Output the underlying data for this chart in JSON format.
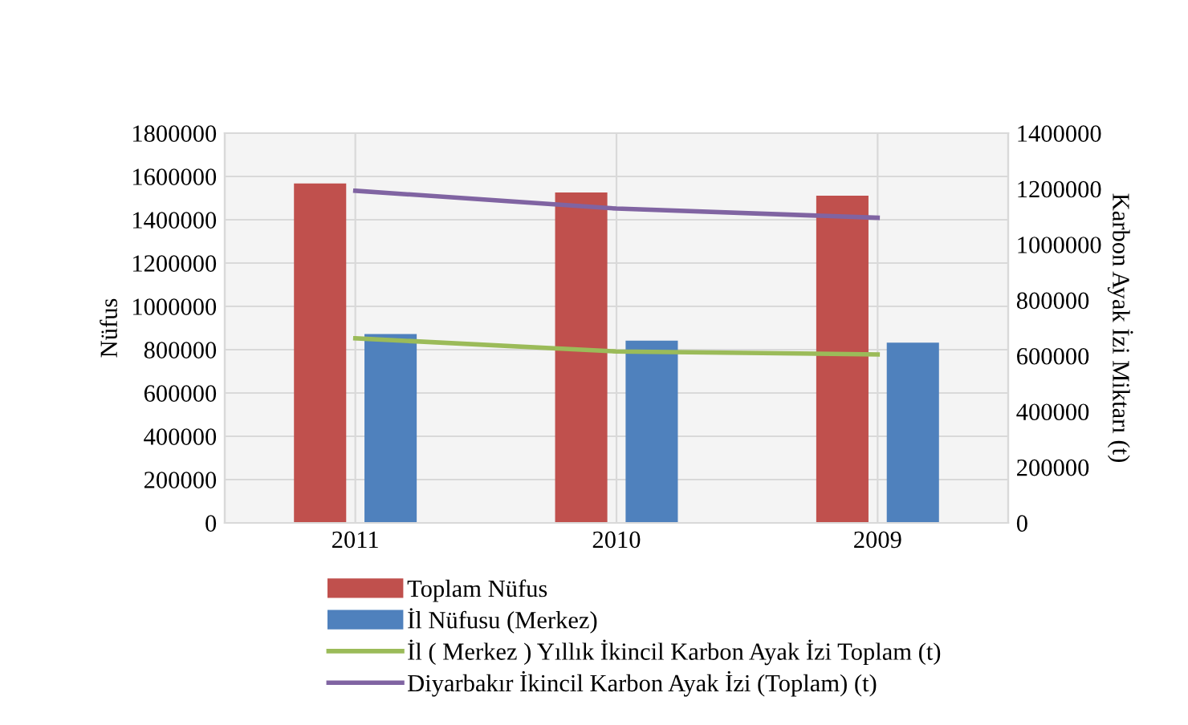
{
  "chart_data": {
    "type": "bar",
    "categories": [
      "2011",
      "2010",
      "2009"
    ],
    "ylabel": "Nüfus",
    "y2label": "Karbon Ayak İzi Miktarı (t)",
    "ylim": [
      0,
      1800000
    ],
    "yticks": [
      0,
      200000,
      400000,
      600000,
      800000,
      1000000,
      1200000,
      1400000,
      1600000,
      1800000
    ],
    "y2lim": [
      0,
      1400000
    ],
    "y2ticks": [
      0,
      200000,
      400000,
      600000,
      800000,
      1000000,
      1200000,
      1400000
    ],
    "grid": true,
    "legend": "bottom",
    "series": [
      {
        "name": "Toplam Nüfus",
        "color": "#c0504d",
        "values": [
          1568000,
          1526000,
          1511000
        ]
      },
      {
        "name": "İl Nüfusu (Merkez)",
        "color": "#4f81bd",
        "values": [
          872000,
          842000,
          832000
        ]
      },
      {
        "name": "İl ( Merkez ) Yıllık İkincil Karbon Ayak İzi Toplam (t)",
        "type": "line",
        "axis": "y2",
        "color": "#9bbb59",
        "values": [
          663000,
          616000,
          605000
        ]
      },
      {
        "name": "Diyarbakır İkincil Karbon Ayak İzi (Toplam) (t)",
        "type": "line",
        "axis": "y2",
        "color": "#8064a2",
        "values": [
          1193000,
          1129000,
          1096000
        ]
      }
    ]
  }
}
